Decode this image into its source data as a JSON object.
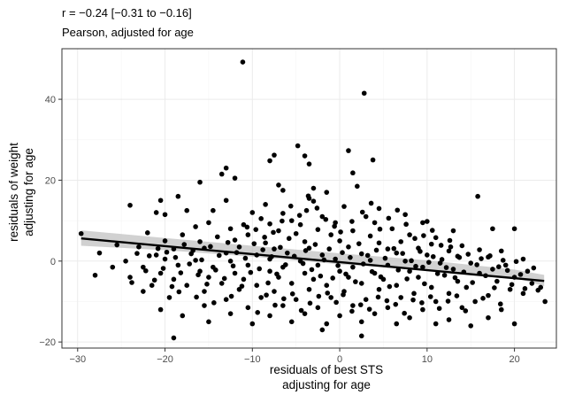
{
  "chart_data": {
    "type": "scatter",
    "title": "r = −0.24 [−0.31 to −0.16]",
    "subtitle": "Pearson, adjusted for age",
    "xlabel": [
      "residuals of best STS",
      "adjusting for age"
    ],
    "ylabel": [
      "residuals of weight",
      "adjusting for age"
    ],
    "xlim": [
      -31.8,
      24.8
    ],
    "ylim": [
      -21.5,
      52.5
    ],
    "x_ticks": [
      -30,
      -20,
      -10,
      0,
      10,
      20
    ],
    "y_ticks": [
      -20,
      0,
      20,
      40
    ],
    "x_tick_labels": [
      "−30",
      "−20",
      "−10",
      "0",
      "10",
      "20"
    ],
    "y_tick_labels": [
      "−20",
      "0",
      "20",
      "40"
    ],
    "grid": true,
    "colors": {
      "points": "#000000",
      "fit_line": "#000000",
      "ci_band": "#bdbdbd",
      "panel_border": "#333333",
      "grid_major": "#ebebeb",
      "grid_minor": "#f5f5f5"
    },
    "fit_line": {
      "x": [
        -29.6,
        23.4
      ],
      "y": [
        5.6,
        -4.9
      ]
    },
    "confidence_band": {
      "x": [
        -29.6,
        -20,
        -10,
        0,
        10,
        20,
        23.4
      ],
      "lower": [
        3.8,
        2.7,
        1.1,
        -0.8,
        -2.3,
        -4.1,
        -6.2
      ],
      "upper": [
        7.6,
        5.7,
        3.8,
        1.9,
        0.2,
        -2.1,
        -3.4
      ]
    },
    "points": [
      [
        -29.6,
        6.8
      ],
      [
        -11.1,
        49.2
      ],
      [
        2.8,
        41.5
      ],
      [
        -4.8,
        28.5
      ],
      [
        1.0,
        27.3
      ],
      [
        -4.0,
        26.0
      ],
      [
        -7.5,
        26.2
      ],
      [
        -8.0,
        24.8
      ],
      [
        3.8,
        25.0
      ],
      [
        -3.5,
        24.0
      ],
      [
        -13.0,
        23.0
      ],
      [
        -13.5,
        21.5
      ],
      [
        -12.0,
        20.5
      ],
      [
        1.5,
        21.8
      ],
      [
        -16.0,
        19.5
      ],
      [
        -7.0,
        18.8
      ],
      [
        -6.5,
        17.5
      ],
      [
        -3.0,
        18.0
      ],
      [
        2.0,
        18.5
      ],
      [
        -1.5,
        17.0
      ],
      [
        -20.5,
        15.0
      ],
      [
        -18.5,
        16.0
      ],
      [
        -3.5,
        15.5
      ],
      [
        -3.0,
        14.8
      ],
      [
        -8.5,
        14.0
      ],
      [
        -13.0,
        15.0
      ],
      [
        15.8,
        16.0
      ],
      [
        -24.0,
        13.8
      ],
      [
        -21.0,
        12.0
      ],
      [
        -20.0,
        11.5
      ],
      [
        -14.5,
        12.5
      ],
      [
        -10.0,
        12.0
      ],
      [
        -6.5,
        11.8
      ],
      [
        -3.8,
        12.5
      ],
      [
        0.5,
        13.5
      ],
      [
        4.5,
        13.0
      ],
      [
        -17.5,
        12.5
      ],
      [
        -9.0,
        10.5
      ],
      [
        -5.5,
        10.0
      ],
      [
        -2.0,
        11.0
      ],
      [
        3.0,
        11.0
      ],
      [
        7.5,
        11.5
      ],
      [
        -15.0,
        9.5
      ],
      [
        -11.0,
        9.0
      ],
      [
        -8.0,
        9.2
      ],
      [
        -4.5,
        9.0
      ],
      [
        -0.5,
        9.5
      ],
      [
        4.0,
        9.5
      ],
      [
        9.5,
        9.5
      ],
      [
        10.0,
        9.8
      ],
      [
        -16.5,
        8.5
      ],
      [
        -12.5,
        8.0
      ],
      [
        -7.0,
        7.5
      ],
      [
        -2.5,
        7.8
      ],
      [
        1.5,
        7.5
      ],
      [
        6.0,
        8.0
      ],
      [
        13.0,
        7.5
      ],
      [
        17.5,
        8.0
      ],
      [
        20.0,
        8.0
      ],
      [
        -22.0,
        7.0
      ],
      [
        -18.0,
        6.5
      ],
      [
        -14.0,
        6.0
      ],
      [
        -10.5,
        6.5
      ],
      [
        -5.0,
        6.8
      ],
      [
        -1.0,
        6.5
      ],
      [
        3.5,
        6.2
      ],
      [
        8.0,
        6.5
      ],
      [
        11.0,
        5.8
      ],
      [
        -20.0,
        5.0
      ],
      [
        -16.0,
        4.8
      ],
      [
        -12.0,
        5.2
      ],
      [
        -8.5,
        4.5
      ],
      [
        -4.0,
        4.8
      ],
      [
        0.0,
        5.0
      ],
      [
        4.5,
        4.5
      ],
      [
        7.0,
        4.8
      ],
      [
        10.5,
        4.2
      ],
      [
        14.0,
        3.8
      ],
      [
        -23.0,
        3.5
      ],
      [
        -19.0,
        3.0
      ],
      [
        -15.5,
        3.2
      ],
      [
        -11.5,
        3.5
      ],
      [
        -7.5,
        3.0
      ],
      [
        -3.5,
        3.2
      ],
      [
        1.0,
        3.5
      ],
      [
        5.5,
        3.0
      ],
      [
        9.0,
        3.2
      ],
      [
        12.5,
        2.5
      ],
      [
        16.0,
        2.8
      ],
      [
        18.5,
        2.5
      ],
      [
        -21.0,
        1.5
      ],
      [
        -17.0,
        1.8
      ],
      [
        -13.0,
        2.0
      ],
      [
        -9.5,
        1.5
      ],
      [
        -6.0,
        2.0
      ],
      [
        -2.0,
        1.5
      ],
      [
        2.5,
        1.8
      ],
      [
        6.5,
        2.0
      ],
      [
        10.0,
        1.5
      ],
      [
        13.5,
        1.2
      ],
      [
        17.0,
        1.0
      ],
      [
        21.0,
        0.5
      ],
      [
        -24.5,
        0.0
      ],
      [
        -20.0,
        0.5
      ],
      [
        -16.5,
        0.2
      ],
      [
        -12.5,
        0.0
      ],
      [
        -8.0,
        0.5
      ],
      [
        -4.5,
        0.0
      ],
      [
        -0.5,
        0.5
      ],
      [
        3.5,
        0.2
      ],
      [
        7.5,
        0.0
      ],
      [
        11.5,
        -0.5
      ],
      [
        15.0,
        -0.5
      ],
      [
        19.0,
        -1.0
      ],
      [
        -22.5,
        -1.5
      ],
      [
        -18.5,
        -1.0
      ],
      [
        -14.5,
        -1.5
      ],
      [
        -10.5,
        -1.0
      ],
      [
        -6.5,
        -1.5
      ],
      [
        -2.5,
        -1.0
      ],
      [
        1.5,
        -1.5
      ],
      [
        5.5,
        -1.0
      ],
      [
        9.5,
        -1.5
      ],
      [
        13.0,
        -2.0
      ],
      [
        17.5,
        -2.0
      ],
      [
        21.5,
        -2.5
      ],
      [
        -20.5,
        -3.0
      ],
      [
        -16.0,
        -2.5
      ],
      [
        -12.0,
        -3.0
      ],
      [
        -8.0,
        -2.5
      ],
      [
        -4.0,
        -3.0
      ],
      [
        0.0,
        -2.5
      ],
      [
        4.0,
        -3.0
      ],
      [
        8.0,
        -2.5
      ],
      [
        12.0,
        -3.5
      ],
      [
        16.0,
        -3.0
      ],
      [
        20.0,
        -4.0
      ],
      [
        -24.0,
        -4.0
      ],
      [
        -19.0,
        -4.5
      ],
      [
        -15.0,
        -4.0
      ],
      [
        -11.0,
        -4.5
      ],
      [
        -7.0,
        -4.0
      ],
      [
        -3.0,
        -4.5
      ],
      [
        1.0,
        -4.0
      ],
      [
        5.0,
        -4.5
      ],
      [
        9.0,
        -4.0
      ],
      [
        13.5,
        -5.0
      ],
      [
        18.0,
        -5.0
      ],
      [
        22.0,
        -5.5
      ],
      [
        -21.5,
        -6.0
      ],
      [
        -17.5,
        -6.0
      ],
      [
        -13.5,
        -5.5
      ],
      [
        -9.5,
        -6.0
      ],
      [
        -5.5,
        -5.5
      ],
      [
        -1.5,
        -6.0
      ],
      [
        2.5,
        -5.5
      ],
      [
        6.5,
        -6.0
      ],
      [
        10.5,
        -6.5
      ],
      [
        14.5,
        -6.5
      ],
      [
        19.5,
        -7.0
      ],
      [
        23.0,
        -6.5
      ],
      [
        -22.5,
        -7.5
      ],
      [
        -15.5,
        -7.5
      ],
      [
        -11.5,
        -7.0
      ],
      [
        -7.5,
        -7.5
      ],
      [
        -3.5,
        -7.0
      ],
      [
        0.5,
        -7.5
      ],
      [
        4.5,
        -7.0
      ],
      [
        8.5,
        -8.0
      ],
      [
        12.5,
        -8.0
      ],
      [
        17.0,
        -8.5
      ],
      [
        21.0,
        -8.0
      ],
      [
        -19.5,
        -9.0
      ],
      [
        -13.0,
        -9.5
      ],
      [
        -9.0,
        -9.0
      ],
      [
        -5.0,
        -9.5
      ],
      [
        -1.0,
        -9.0
      ],
      [
        3.0,
        -9.5
      ],
      [
        7.0,
        -9.0
      ],
      [
        11.0,
        -10.0
      ],
      [
        15.5,
        -10.0
      ],
      [
        -20.5,
        -12.0
      ],
      [
        -15.5,
        -11.0
      ],
      [
        -10.5,
        -11.5
      ],
      [
        -6.5,
        -11.0
      ],
      [
        -2.5,
        -11.5
      ],
      [
        1.5,
        -11.0
      ],
      [
        5.5,
        -11.5
      ],
      [
        9.5,
        -12.0
      ],
      [
        14.0,
        -11.5
      ],
      [
        18.5,
        -12.0
      ],
      [
        23.5,
        -10.0
      ],
      [
        -18.0,
        -13.5
      ],
      [
        -12.5,
        -13.0
      ],
      [
        -8.0,
        -13.5
      ],
      [
        -4.0,
        -13.0
      ],
      [
        0.0,
        -13.5
      ],
      [
        4.0,
        -13.0
      ],
      [
        8.0,
        -14.0
      ],
      [
        12.5,
        -14.5
      ],
      [
        17.0,
        -14.0
      ],
      [
        -15.0,
        -15.0
      ],
      [
        -10.0,
        -15.5
      ],
      [
        -5.5,
        -15.0
      ],
      [
        -1.5,
        -15.5
      ],
      [
        2.5,
        -15.0
      ],
      [
        6.5,
        -15.5
      ],
      [
        11.0,
        -15.5
      ],
      [
        15.0,
        -16.0
      ],
      [
        20.0,
        -15.5
      ],
      [
        -19.0,
        -19.0
      ],
      [
        2.5,
        -18.5
      ],
      [
        -2.0,
        -17.0
      ],
      [
        -27.5,
        2.0
      ],
      [
        -26.0,
        -1.5
      ],
      [
        -25.5,
        4.0
      ],
      [
        -28.0,
        -3.5
      ],
      [
        -5.8,
        5.6
      ],
      [
        -5.2,
        1.2
      ],
      [
        -4.2,
        -0.6
      ],
      [
        -3.9,
        2.6
      ],
      [
        -3.2,
        -2.1
      ],
      [
        -2.8,
        4.1
      ],
      [
        -2.2,
        -3.7
      ],
      [
        -1.8,
        0.3
      ],
      [
        -1.2,
        3.0
      ],
      [
        -0.8,
        -4.2
      ],
      [
        -0.2,
        -1.1
      ],
      [
        0.3,
        2.1
      ],
      [
        0.7,
        -3.2
      ],
      [
        1.2,
        0.9
      ],
      [
        1.8,
        -5.1
      ],
      [
        2.2,
        4.3
      ],
      [
        2.7,
        -0.7
      ],
      [
        3.2,
        1.4
      ],
      [
        3.7,
        -2.6
      ],
      [
        4.2,
        2.7
      ],
      [
        4.7,
        -3.9
      ],
      [
        5.2,
        0.7
      ],
      [
        5.7,
        -6.3
      ],
      [
        6.2,
        3.1
      ],
      [
        6.7,
        -2.2
      ],
      [
        7.2,
        1.9
      ],
      [
        7.7,
        -4.4
      ],
      [
        8.2,
        0.1
      ],
      [
        8.7,
        -1.3
      ],
      [
        9.2,
        2.4
      ],
      [
        9.7,
        -5.6
      ],
      [
        10.2,
        -0.3
      ],
      [
        10.7,
        1.1
      ],
      [
        11.2,
        -3.1
      ],
      [
        11.7,
        0.4
      ],
      [
        12.2,
        -1.6
      ],
      [
        12.7,
        3.5
      ],
      [
        13.2,
        -4.1
      ],
      [
        13.7,
        0.9
      ],
      [
        14.2,
        -2.7
      ],
      [
        14.7,
        1.7
      ],
      [
        15.2,
        -5.3
      ],
      [
        15.7,
        -0.9
      ],
      [
        16.2,
        0.6
      ],
      [
        16.7,
        -3.6
      ],
      [
        17.2,
        1.3
      ],
      [
        17.7,
        -6.6
      ],
      [
        18.2,
        -1.4
      ],
      [
        18.7,
        0.2
      ],
      [
        19.2,
        -2.3
      ],
      [
        19.7,
        -5.8
      ],
      [
        20.2,
        -0.1
      ],
      [
        20.7,
        -3.3
      ],
      [
        21.2,
        -6.8
      ],
      [
        22.2,
        -1.7
      ],
      [
        22.7,
        -7.2
      ],
      [
        -6.2,
        -0.9
      ],
      [
        -6.8,
        3.4
      ],
      [
        -7.2,
        -3.2
      ],
      [
        -7.8,
        1.1
      ],
      [
        -8.2,
        -5.4
      ],
      [
        -8.8,
        2.8
      ],
      [
        -9.2,
        -1.9
      ],
      [
        -9.8,
        4.3
      ],
      [
        -10.2,
        -2.8
      ],
      [
        -10.8,
        0.7
      ],
      [
        -11.2,
        -6.2
      ],
      [
        -11.8,
        2.1
      ],
      [
        -12.2,
        -1.2
      ],
      [
        -12.8,
        4.6
      ],
      [
        -13.2,
        -4.3
      ],
      [
        -13.8,
        1.4
      ],
      [
        -14.2,
        -2.2
      ],
      [
        -14.8,
        3.6
      ],
      [
        -15.2,
        -5.7
      ],
      [
        -15.8,
        0.3
      ],
      [
        -16.2,
        -3.4
      ],
      [
        -16.8,
        2.6
      ],
      [
        -17.2,
        -0.7
      ],
      [
        -17.8,
        4.1
      ],
      [
        -18.2,
        -2.9
      ],
      [
        -18.8,
        0.9
      ],
      [
        -19.2,
        -6.3
      ],
      [
        -19.8,
        2.2
      ],
      [
        -20.2,
        -1.8
      ],
      [
        -20.8,
        3.1
      ],
      [
        -21.2,
        -4.7
      ],
      [
        -21.8,
        1.3
      ],
      [
        -22.2,
        -2.4
      ],
      [
        -23.2,
        1.9
      ],
      [
        -23.8,
        -5.3
      ],
      [
        0.1,
        7.2
      ],
      [
        -0.6,
        8.6
      ],
      [
        1.4,
        9.8
      ],
      [
        -1.6,
        10.3
      ],
      [
        2.6,
        12.1
      ],
      [
        -2.6,
        13.1
      ],
      [
        3.6,
        14.3
      ],
      [
        -3.6,
        16.1
      ],
      [
        4.6,
        7.9
      ],
      [
        5.6,
        10.6
      ],
      [
        -4.6,
        11.3
      ],
      [
        6.6,
        12.6
      ],
      [
        -5.6,
        13.6
      ],
      [
        7.6,
        9.1
      ],
      [
        -6.6,
        9.9
      ],
      [
        8.6,
        5.6
      ],
      [
        -7.6,
        7.1
      ],
      [
        9.6,
        6.3
      ],
      [
        -8.6,
        5.9
      ],
      [
        10.6,
        7.6
      ],
      [
        11.6,
        3.9
      ],
      [
        -9.6,
        7.8
      ],
      [
        12.6,
        5.1
      ],
      [
        -10.6,
        8.4
      ],
      [
        0.4,
        -8.3
      ],
      [
        -0.4,
        -10.2
      ],
      [
        1.4,
        -12.4
      ],
      [
        -1.4,
        -7.9
      ],
      [
        2.4,
        -10.8
      ],
      [
        -2.4,
        -8.7
      ],
      [
        3.4,
        -11.9
      ],
      [
        -3.4,
        -10.4
      ],
      [
        4.4,
        -8.9
      ],
      [
        -4.4,
        -12.2
      ],
      [
        5.4,
        -9.8
      ],
      [
        -5.4,
        -8.1
      ],
      [
        6.4,
        -10.7
      ],
      [
        -6.4,
        -9.3
      ],
      [
        7.4,
        -12.9
      ],
      [
        -7.4,
        -10.9
      ],
      [
        8.4,
        -9.6
      ],
      [
        -8.4,
        -8.4
      ],
      [
        9.4,
        -10.3
      ],
      [
        -9.4,
        -12.7
      ],
      [
        10.4,
        -8.8
      ],
      [
        11.4,
        -11.7
      ],
      [
        12.4,
        -9.9
      ],
      [
        13.4,
        -8.6
      ],
      [
        14.4,
        -12.3
      ],
      [
        16.4,
        -9.2
      ],
      [
        18.4,
        -10.6
      ],
      [
        -12.4,
        -8.7
      ],
      [
        -14.4,
        -10.3
      ],
      [
        -16.4,
        -8.9
      ],
      [
        -18.4,
        -7.6
      ]
    ]
  }
}
